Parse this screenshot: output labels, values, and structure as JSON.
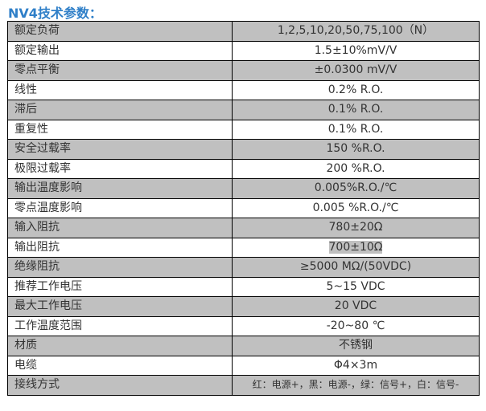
{
  "title": "NV4技术参数：",
  "rows": [
    {
      "label": "额定负荷",
      "value": "1,2,5,10,20,50,75,100（N）"
    },
    {
      "label": "额定输出",
      "value": "1.5±10%mV/V"
    },
    {
      "label": "零点平衡",
      "value": "±0.0300 mV/V"
    },
    {
      "label": "线性",
      "value": "0.2% R.O."
    },
    {
      "label": "滞后",
      "value": "0.1% R.O."
    },
    {
      "label": "重复性",
      "value": "0.1% R.O."
    },
    {
      "label": "安全过载率",
      "value": "150 %R.O."
    },
    {
      "label": "极限过载率",
      "value": "200 %R.O."
    },
    {
      "label": "输出温度影响",
      "value": "0.005%R.O./℃"
    },
    {
      "label": "零点温度影响",
      "value": "0.005 %R.O./℃"
    },
    {
      "label": "输入阻抗",
      "value": "780±20Ω"
    },
    {
      "label": "输出阻抗",
      "value": "700±10Ω"
    },
    {
      "label": "绝缘阻抗",
      "value": "≥5000 MΩ/(50VDC)"
    },
    {
      "label": "推荐工作电压",
      "value": "5~15 VDC"
    },
    {
      "label": "最大工作电压",
      "value": "20 VDC"
    },
    {
      "label": "工作温度范围",
      "value": "-20~80 ℃"
    },
    {
      "label": "材质",
      "value": "不锈钢"
    },
    {
      "label": "电缆",
      "value": "Φ4×3m"
    },
    {
      "label": "接线方式",
      "value": "红：电源+，黑：电源-，绿：信号+，白：信号-"
    }
  ],
  "colors": {
    "title": "#2f7fc8",
    "row_shade": "#c0c0c0"
  }
}
